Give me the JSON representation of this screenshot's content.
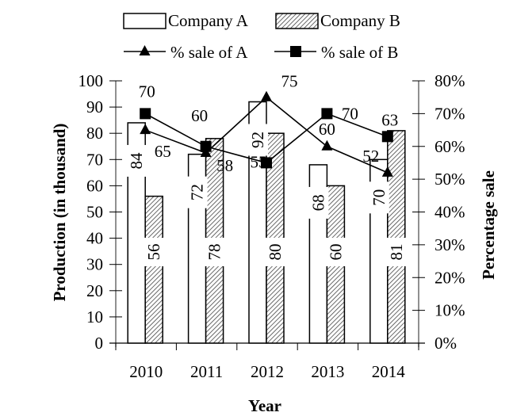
{
  "chart_data": {
    "type": "bar",
    "title": "",
    "xlabel": "Year",
    "ylabel": "Production (in thousand)",
    "y2label": "Percentage sale",
    "ylim": [
      0,
      100
    ],
    "y2lim": [
      0,
      80
    ],
    "categories": [
      "2010",
      "2011",
      "2012",
      "2013",
      "2014"
    ],
    "yticks": [
      "0",
      "10",
      "20",
      "30",
      "40",
      "50",
      "60",
      "70",
      "80",
      "90",
      "100"
    ],
    "y2ticks": [
      "0%",
      "10%",
      "20%",
      "30%",
      "40%",
      "50%",
      "60%",
      "70%",
      "80%"
    ],
    "series": [
      {
        "name": "Company A",
        "kind": "bar",
        "pattern": "plain",
        "values": [
          84,
          72,
          92,
          68,
          70
        ]
      },
      {
        "name": "Company B",
        "kind": "bar",
        "pattern": "hatched",
        "values": [
          56,
          78,
          80,
          60,
          81
        ]
      },
      {
        "name": "% sale of A",
        "kind": "line",
        "marker": "triangle",
        "axis": "right",
        "values": [
          65,
          58,
          75,
          60,
          52
        ]
      },
      {
        "name": "% sale of B",
        "kind": "line",
        "marker": "square",
        "axis": "right",
        "values": [
          70,
          60,
          55,
          70,
          63
        ]
      }
    ],
    "legend": "top",
    "grid": false
  },
  "colors": {
    "stroke": "#000000",
    "bar_fill": "#ffffff",
    "hatch": "#555555"
  }
}
